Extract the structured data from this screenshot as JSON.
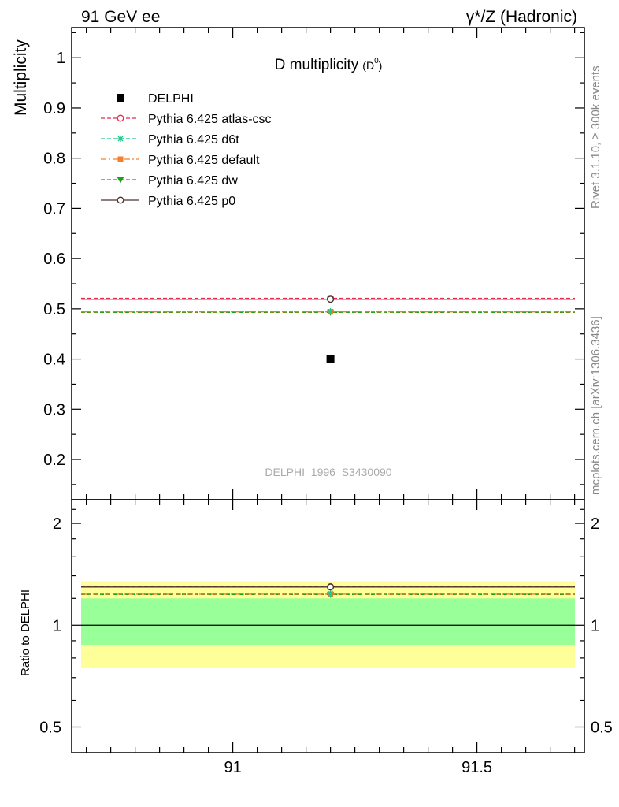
{
  "header": {
    "left": "91 GeV ee",
    "right_prefix": "γ*/Z",
    "right_suffix": "(Hadronic)"
  },
  "side": {
    "rivet": "Rivet 3.1.10, ≥ 300k events",
    "mcplots": "mcplots.cern.ch [arXiv:1306.3436]"
  },
  "colors": {
    "data": "#000000",
    "atlas_csc": "#e8294f",
    "d6t": "#21c88a",
    "default": "#f57f2a",
    "dw": "#1aa31a",
    "p0": "#4a3030",
    "band_inner": "#99ff99",
    "band_outer": "#ffff99"
  },
  "chart_data": [
    {
      "type": "scatter",
      "panel": "main",
      "title_main": "D multiplicity",
      "title_sub": "(D",
      "title_sup": "0",
      "title_close": ")",
      "ylabel": "Multiplicity",
      "watermark": "DELPHI_1996_S3430090",
      "xlim": [
        90.67,
        91.72
      ],
      "ylim": [
        0.12,
        1.06
      ],
      "yticks": [
        0.2,
        0.3,
        0.4,
        0.5,
        0.6,
        0.7,
        0.8,
        0.9,
        1
      ],
      "ytick_labels": [
        "0.2",
        "0.3",
        "0.4",
        "0.5",
        "0.6",
        "0.7",
        "0.8",
        "0.9",
        "1"
      ],
      "legend_position": "top-left",
      "series": [
        {
          "name": "DELPHI",
          "key": "data",
          "style": "data",
          "x": 91.2,
          "y": 0.4,
          "xlo": 90.67,
          "xhi": 91.72
        },
        {
          "name": "Pythia 6.425 atlas-csc",
          "key": "atlas_csc",
          "style": "dashed",
          "marker": "open-circle",
          "x": 91.2,
          "y": 0.521
        },
        {
          "name": "Pythia 6.425 d6t",
          "key": "d6t",
          "style": "dashed",
          "marker": "star",
          "x": 91.2,
          "y": 0.495
        },
        {
          "name": "Pythia 6.425 default",
          "key": "default",
          "style": "dashdot",
          "marker": "square",
          "x": 91.2,
          "y": 0.494
        },
        {
          "name": "Pythia 6.425 dw",
          "key": "dw",
          "style": "dashed",
          "marker": "triangle-down",
          "x": 91.2,
          "y": 0.493
        },
        {
          "name": "Pythia 6.425 p0",
          "key": "p0",
          "style": "solid",
          "marker": "open-circle",
          "x": 91.2,
          "y": 0.519
        }
      ]
    },
    {
      "type": "scatter",
      "panel": "ratio",
      "ylabel": "Ratio to DELPHI",
      "xlim": [
        90.67,
        91.72
      ],
      "ylim": [
        0.42,
        2.35
      ],
      "log_y": true,
      "yticks": [
        0.5,
        1,
        2
      ],
      "ytick_labels": [
        "0.5",
        "1",
        "2"
      ],
      "xticks": [
        91,
        91.5
      ],
      "xtick_labels": [
        "91",
        "91.5"
      ],
      "band_inner": [
        0.875,
        1.2
      ],
      "band_outer": [
        0.75,
        1.35
      ],
      "ratios": {
        "atlas_csc": 1.3,
        "d6t": 1.24,
        "default": 1.235,
        "dw": 1.232,
        "p0": 1.297
      }
    }
  ]
}
